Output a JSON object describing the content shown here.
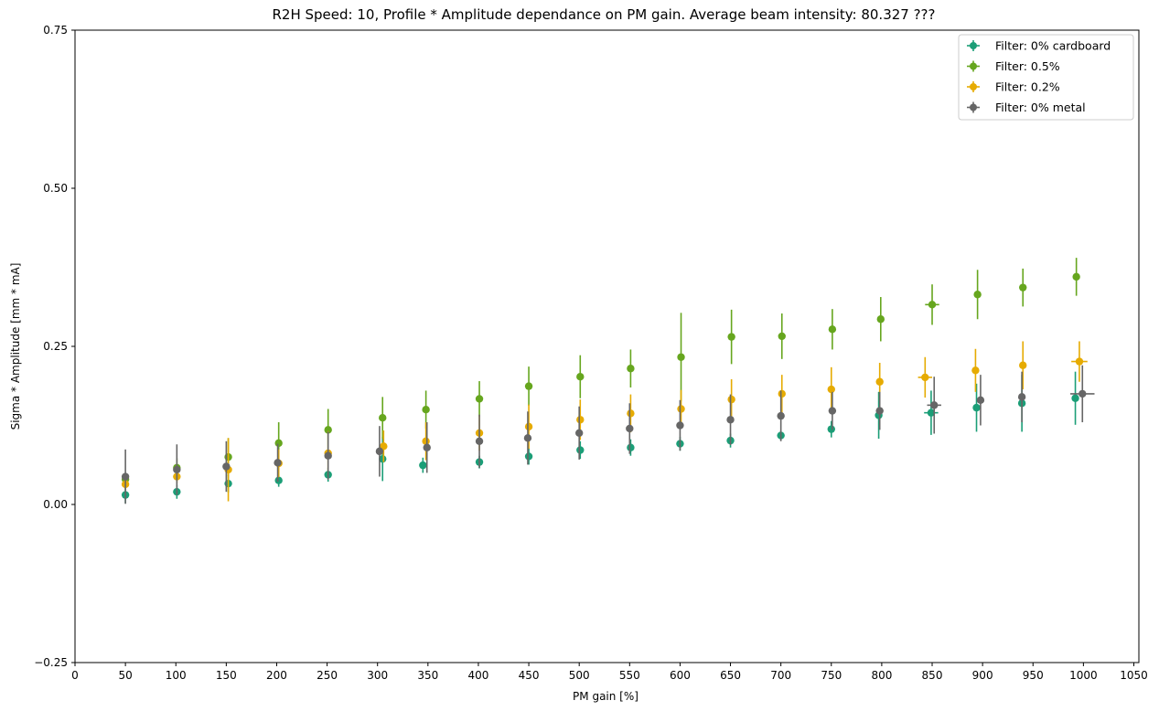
{
  "chart_data": {
    "type": "scatter",
    "title": "R2H Speed: 10, Profile * Amplitude dependance on PM gain. Average beam intensity: 80.327 ???",
    "xlabel": "PM gain [%]",
    "ylabel": "Sigma * Amplitude [mm * mA]",
    "xlim": [
      0,
      1055
    ],
    "ylim": [
      -0.25,
      0.75
    ],
    "xticks": [
      0,
      50,
      100,
      150,
      200,
      250,
      300,
      350,
      400,
      450,
      500,
      550,
      600,
      650,
      700,
      750,
      800,
      850,
      900,
      950,
      1000,
      1050
    ],
    "yticks": [
      -0.25,
      0.0,
      0.25,
      0.5,
      0.75
    ],
    "ytick_labels": [
      "−0.25",
      "0.00",
      "0.25",
      "0.50",
      "0.75"
    ],
    "grid": false,
    "legend_position": "top-right",
    "series": [
      {
        "name": "Filter: 0% cardboard",
        "color": "#1b9e77",
        "x": [
          50,
          101,
          152,
          202,
          251,
          305,
          345,
          401,
          450,
          501,
          551,
          600,
          650,
          700,
          750,
          797,
          849,
          894,
          939,
          992
        ],
        "y": [
          0.015,
          0.02,
          0.033,
          0.038,
          0.047,
          0.072,
          0.062,
          0.067,
          0.076,
          0.086,
          0.09,
          0.096,
          0.101,
          0.109,
          0.119,
          0.141,
          0.145,
          0.153,
          0.16,
          0.168
        ],
        "yerr": [
          0.013,
          0.011,
          0.014,
          0.01,
          0.011,
          0.035,
          0.012,
          0.01,
          0.013,
          0.014,
          0.013,
          0.011,
          0.011,
          0.008,
          0.013,
          0.037,
          0.035,
          0.038,
          0.045,
          0.042
        ],
        "xerr": [
          0,
          0,
          0,
          0,
          0,
          0,
          0,
          0,
          0,
          0,
          0,
          0,
          0,
          0,
          0,
          0,
          7,
          0,
          0,
          0
        ]
      },
      {
        "name": "Filter: 0.5%",
        "color": "#66a61e",
        "x": [
          50,
          101,
          152,
          202,
          251,
          305,
          348,
          401,
          450,
          501,
          551,
          601,
          651,
          701,
          751,
          799,
          850,
          895,
          940,
          993
        ],
        "y": [
          0.04,
          0.058,
          0.075,
          0.097,
          0.118,
          0.137,
          0.15,
          0.167,
          0.187,
          0.202,
          0.215,
          0.233,
          0.265,
          0.266,
          0.277,
          0.293,
          0.316,
          0.332,
          0.343,
          0.36
        ],
        "yerr": [
          0.01,
          0.015,
          0.03,
          0.033,
          0.033,
          0.033,
          0.03,
          0.028,
          0.031,
          0.034,
          0.03,
          0.07,
          0.043,
          0.036,
          0.032,
          0.035,
          0.032,
          0.039,
          0.03,
          0.03
        ],
        "xerr": [
          0,
          0,
          0,
          0,
          0,
          0,
          0,
          0,
          0,
          0,
          0,
          0,
          0,
          0,
          0,
          0,
          7,
          0,
          0,
          0
        ]
      },
      {
        "name": "Filter: 0.2%",
        "color": "#e6ab02",
        "x": [
          50,
          101,
          152,
          202,
          251,
          306,
          348,
          401,
          450,
          501,
          551,
          601,
          651,
          701,
          750,
          798,
          843,
          893,
          940,
          996
        ],
        "y": [
          0.032,
          0.044,
          0.055,
          0.065,
          0.081,
          0.092,
          0.1,
          0.113,
          0.123,
          0.134,
          0.144,
          0.151,
          0.166,
          0.175,
          0.182,
          0.194,
          0.201,
          0.212,
          0.22,
          0.226
        ],
        "yerr": [
          0.008,
          0.01,
          0.05,
          0.022,
          0.035,
          0.025,
          0.03,
          0.028,
          0.035,
          0.032,
          0.03,
          0.03,
          0.032,
          0.03,
          0.035,
          0.03,
          0.032,
          0.034,
          0.038,
          0.032
        ],
        "xerr": [
          0,
          0,
          0,
          0,
          0,
          0,
          0,
          0,
          0,
          0,
          0,
          0,
          0,
          0,
          0,
          0,
          7,
          0,
          0,
          8
        ]
      },
      {
        "name": "Filter: 0% metal",
        "color": "#666666",
        "x": [
          50,
          101,
          150,
          201,
          251,
          302,
          349,
          401,
          449,
          500,
          550,
          600,
          650,
          700,
          751,
          798,
          852,
          898,
          939,
          999
        ],
        "y": [
          0.044,
          0.055,
          0.06,
          0.066,
          0.077,
          0.084,
          0.09,
          0.1,
          0.105,
          0.113,
          0.12,
          0.125,
          0.134,
          0.14,
          0.148,
          0.148,
          0.157,
          0.165,
          0.17,
          0.175
        ],
        "yerr": [
          0.043,
          0.04,
          0.04,
          0.03,
          0.038,
          0.04,
          0.04,
          0.042,
          0.042,
          0.042,
          0.04,
          0.04,
          0.04,
          0.04,
          0.03,
          0.03,
          0.045,
          0.04,
          0.04,
          0.045
        ],
        "xerr": [
          0,
          0,
          0,
          0,
          0,
          0,
          0,
          0,
          0,
          0,
          0,
          0,
          0,
          0,
          0,
          0,
          7,
          0,
          0,
          12
        ]
      }
    ]
  }
}
